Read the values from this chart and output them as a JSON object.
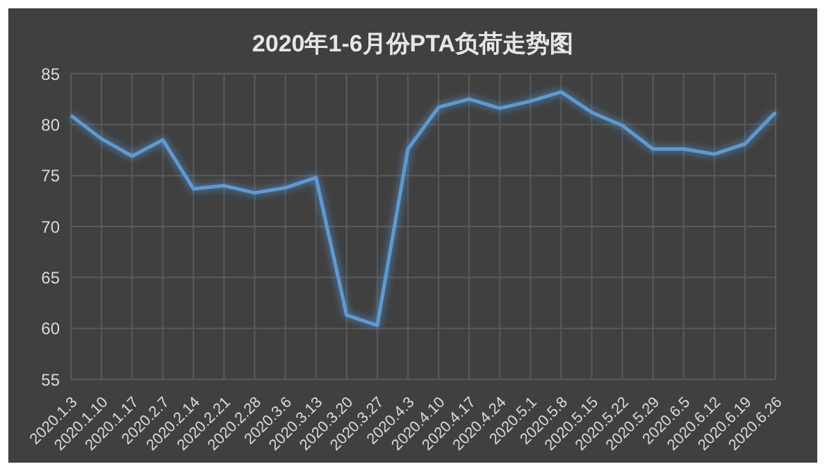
{
  "chart_data": {
    "type": "line",
    "title": "2020年1-6月份PTA负荷走势图",
    "categories": [
      "2020.1.3",
      "2020.1.10",
      "2020.1.17",
      "2020.2.7",
      "2020.2.14",
      "2020.2.21",
      "2020.2.28",
      "2020.3.6",
      "2020.3.13",
      "2020.3.20",
      "2020.3.27",
      "2020.4.3",
      "2020.4.10",
      "2020.4.17",
      "2020.4.24",
      "2020.5.1",
      "2020.5.8",
      "2020.5.15",
      "2020.5.22",
      "2020.5.29",
      "2020.6.5",
      "2020.6.12",
      "2020.6.19",
      "2020.6.26"
    ],
    "series": [
      {
        "color": "#5b9bd5",
        "values": [
          80.9,
          78.6,
          76.9,
          78.5,
          73.7,
          74.0,
          73.3,
          73.8,
          74.8,
          61.3,
          60.3,
          77.6,
          81.7,
          82.5,
          81.6,
          82.3,
          83.2,
          81.2,
          79.9,
          77.6,
          77.6,
          77.1,
          78.1,
          81.2
        ]
      }
    ],
    "ylim": [
      55,
      85
    ],
    "yticks": [
      55,
      60,
      65,
      70,
      75,
      80,
      85
    ],
    "grid": true,
    "legend": false,
    "marker": "none",
    "line_style": "solid"
  }
}
